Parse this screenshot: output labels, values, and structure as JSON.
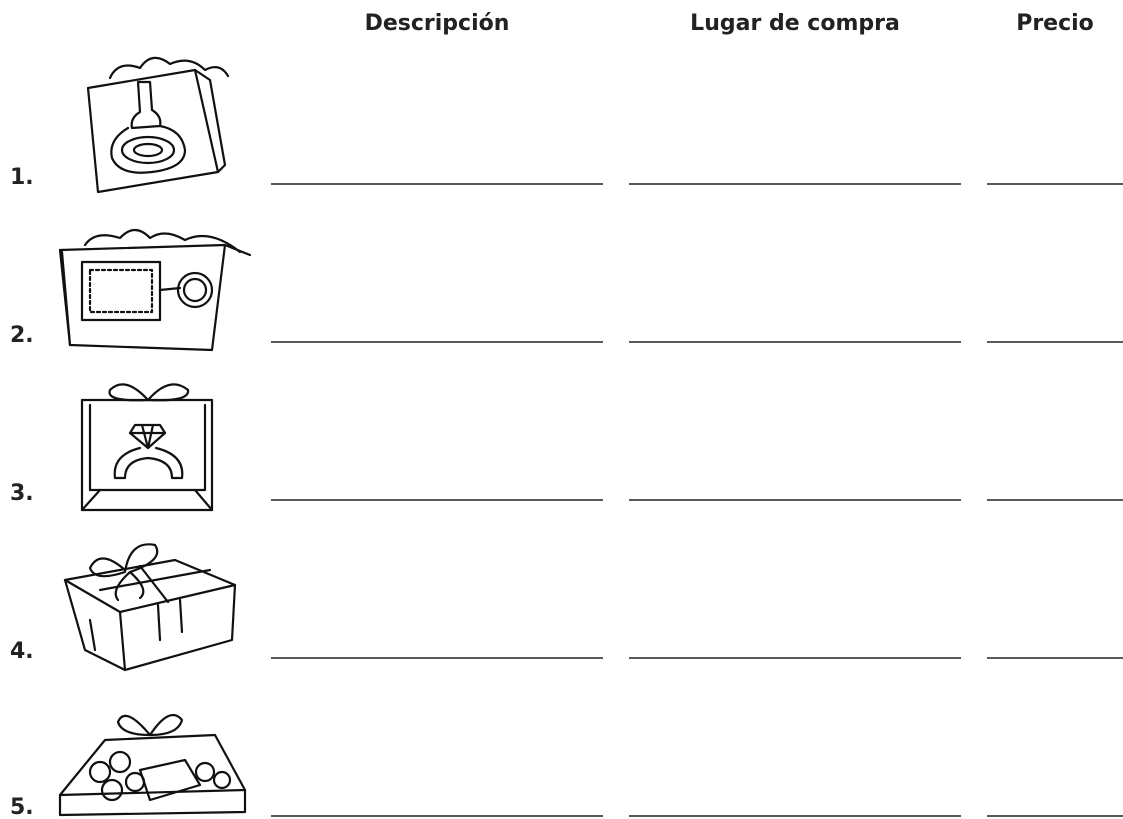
{
  "header": {
    "columns": [
      "Descripción",
      "Lugar de compra",
      "Precio"
    ]
  },
  "rows": [
    {
      "number": "1."
    },
    {
      "number": "2."
    },
    {
      "number": "3."
    },
    {
      "number": "4."
    },
    {
      "number": "5."
    }
  ]
}
